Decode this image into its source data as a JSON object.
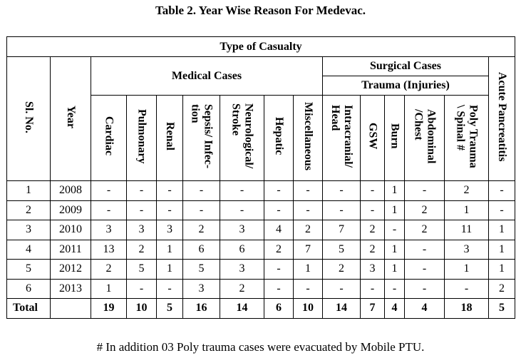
{
  "title": "Table 2. Year Wise Reason For Medevac.",
  "headers": {
    "type_of_casualty": "Type of Casualty",
    "medical_cases": "Medical Cases",
    "surgical_cases": "Surgical Cases",
    "trauma": "Trauma (Injuries)",
    "sl_no": "Sl. No.",
    "year": "Year",
    "cardiac": "Cardiac",
    "pulmonary": "Pulmonary",
    "renal": "Renal",
    "sepsis_l1": "Sepsis/ Infec-",
    "sepsis_l2": "tion",
    "neuro_l1": "Neurological/",
    "neuro_l2": "Stroke",
    "hepatic": "Hepatic",
    "misc": "Miscellaneous",
    "intracranial_l1": "Intracranial/",
    "intracranial_l2": "Head",
    "gsw": "GSW",
    "burn": "Burn",
    "abdominal_l1": "Abdominal",
    "abdominal_l2": "/Chest",
    "poly_l1": "Poly Trauma",
    "poly_l2": "\\ Spinal #",
    "acute_pancreatitis": "Acute Pancreatitis"
  },
  "rows": [
    [
      "1",
      "2008",
      "-",
      "-",
      "-",
      "-",
      "-",
      "-",
      "-",
      "-",
      "-",
      "1",
      "-",
      "2",
      "-"
    ],
    [
      "2",
      "2009",
      "-",
      "-",
      "-",
      "-",
      "-",
      "-",
      "-",
      "-",
      "-",
      "1",
      "2",
      "1",
      "-"
    ],
    [
      "3",
      "2010",
      "3",
      "3",
      "3",
      "2",
      "3",
      "4",
      "2",
      "7",
      "2",
      "-",
      "2",
      "11",
      "1"
    ],
    [
      "4",
      "2011",
      "13",
      "2",
      "1",
      "6",
      "6",
      "2",
      "7",
      "5",
      "2",
      "1",
      "-",
      "3",
      "1"
    ],
    [
      "5",
      "2012",
      "2",
      "5",
      "1",
      "5",
      "3",
      "-",
      "1",
      "2",
      "3",
      "1",
      "-",
      "1",
      "1"
    ],
    [
      "6",
      "2013",
      "1",
      "-",
      "-",
      "3",
      "2",
      "-",
      "-",
      "-",
      "-",
      "-",
      "-",
      "-",
      "2"
    ]
  ],
  "total_row": [
    "Total",
    "",
    "19",
    "10",
    "5",
    "16",
    "14",
    "6",
    "10",
    "14",
    "7",
    "4",
    "4",
    "18",
    "5"
  ],
  "footnote": "# In addition 03 Poly trauma cases were evacuated by Mobile PTU."
}
